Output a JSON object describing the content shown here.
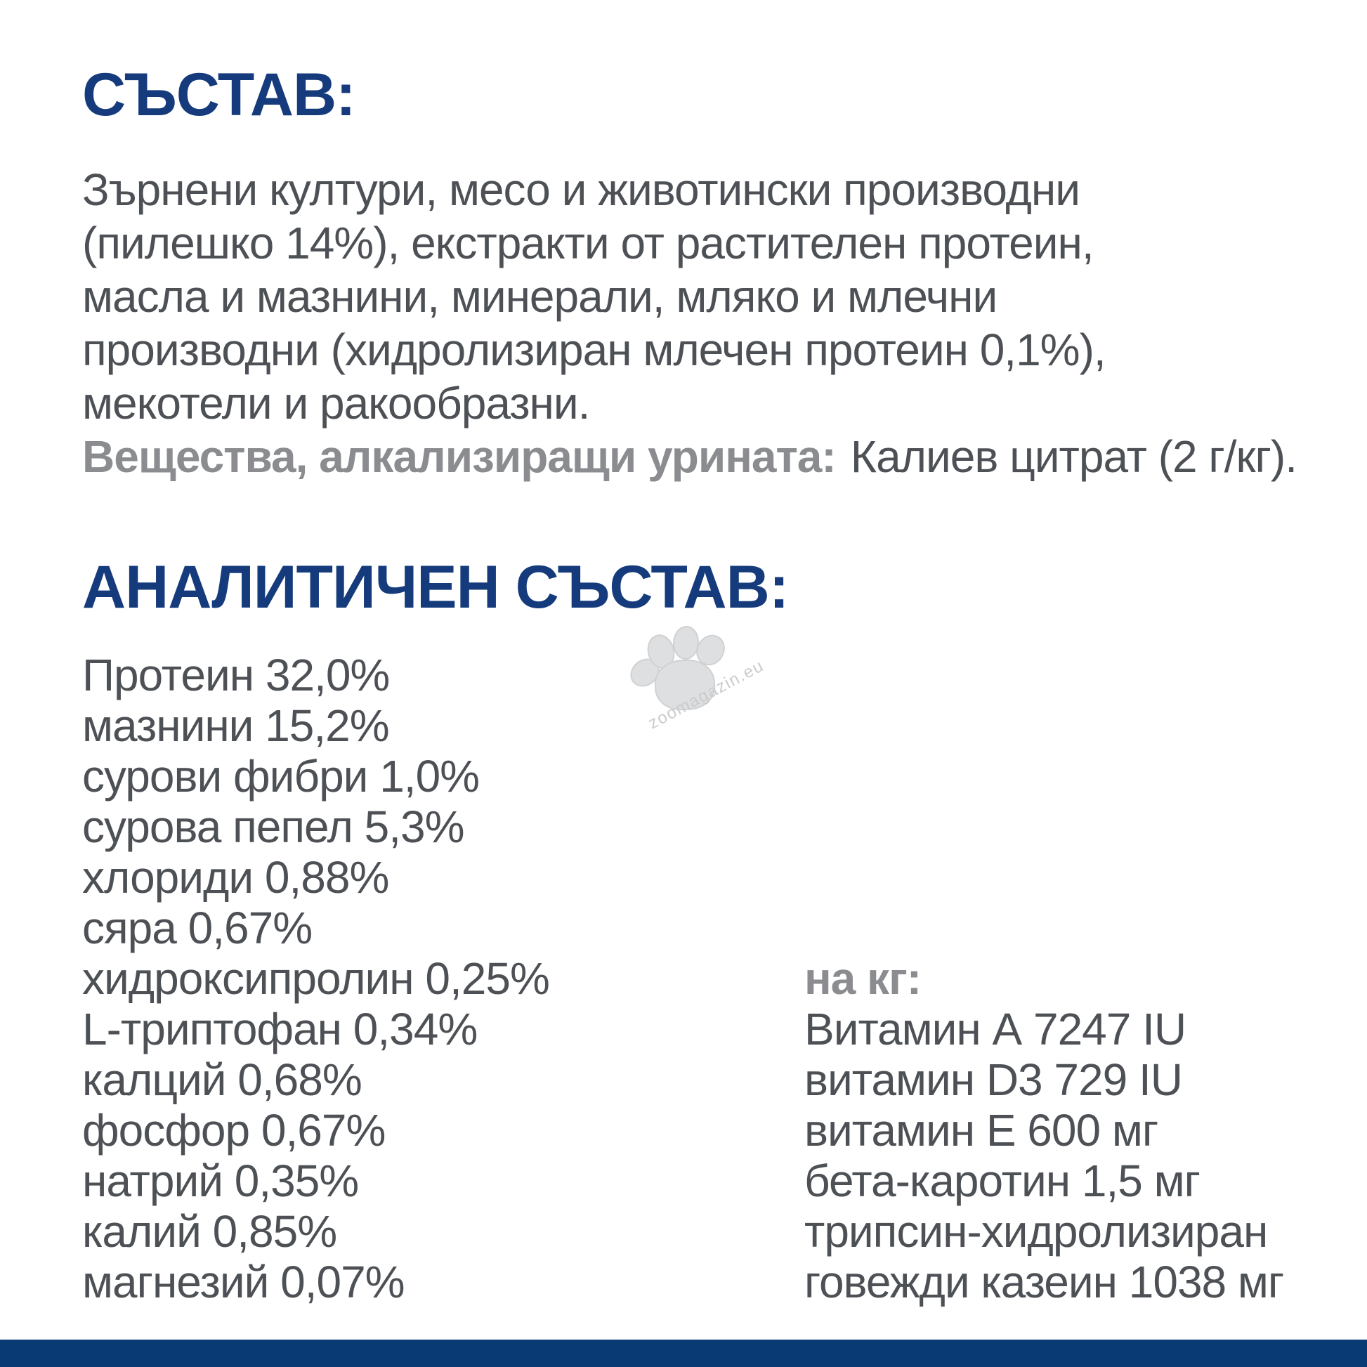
{
  "page": {
    "background": "#ffffff",
    "heading_color": "#153b7c",
    "body_text_color": "#4d5156",
    "muted_label_color": "#8a8c8f",
    "footer_bar_color": "#0a3a74",
    "watermark_text_color": "#c9cbcd",
    "paw_fill_color": "#dedfe0"
  },
  "composition": {
    "title": "СЪСТАВ:",
    "lines": [
      "Зърнени култури, месо и животински производни",
      "(пилешко 14%), екстракти от растителен протеин,",
      "масла и мазнини, минерали, мляко и млечни",
      "производни (хидролизиран млечен протеин 0,1%),",
      "мекотели и ракообразни."
    ],
    "urine_alkalizing_label": "Вещества, алкализиращи урината:",
    "urine_alkalizing_value": "Калиев цитрат (2 г/кг)."
  },
  "analytical": {
    "title": "АНАЛИТИЧЕН СЪСТАВ:",
    "nutrients": [
      "Протеин 32,0%",
      "мазнини 15,2%",
      "сурови фибри 1,0%",
      "сурова пепел 5,3%",
      "хлориди 0,88%",
      "сяра 0,67%",
      "хидроксипролин 0,25%",
      "L-триптофан 0,34%",
      "калций 0,68%",
      "фосфор 0,67%",
      "натрий 0,35%",
      "калий 0,85%",
      "магнезий 0,07%"
    ],
    "per_kg_label": "на кг:",
    "per_kg_lines": [
      "Витамин А 7247 IU",
      "витамин D3 729 IU",
      "витамин Е 600 мг",
      "бета-каротин 1,5 мг",
      "трипсин-хидролизиран",
      "говежди казеин 1038 мг"
    ]
  },
  "watermark": {
    "icon": "paw-print-icon",
    "text": "zoomagazin.eu"
  }
}
